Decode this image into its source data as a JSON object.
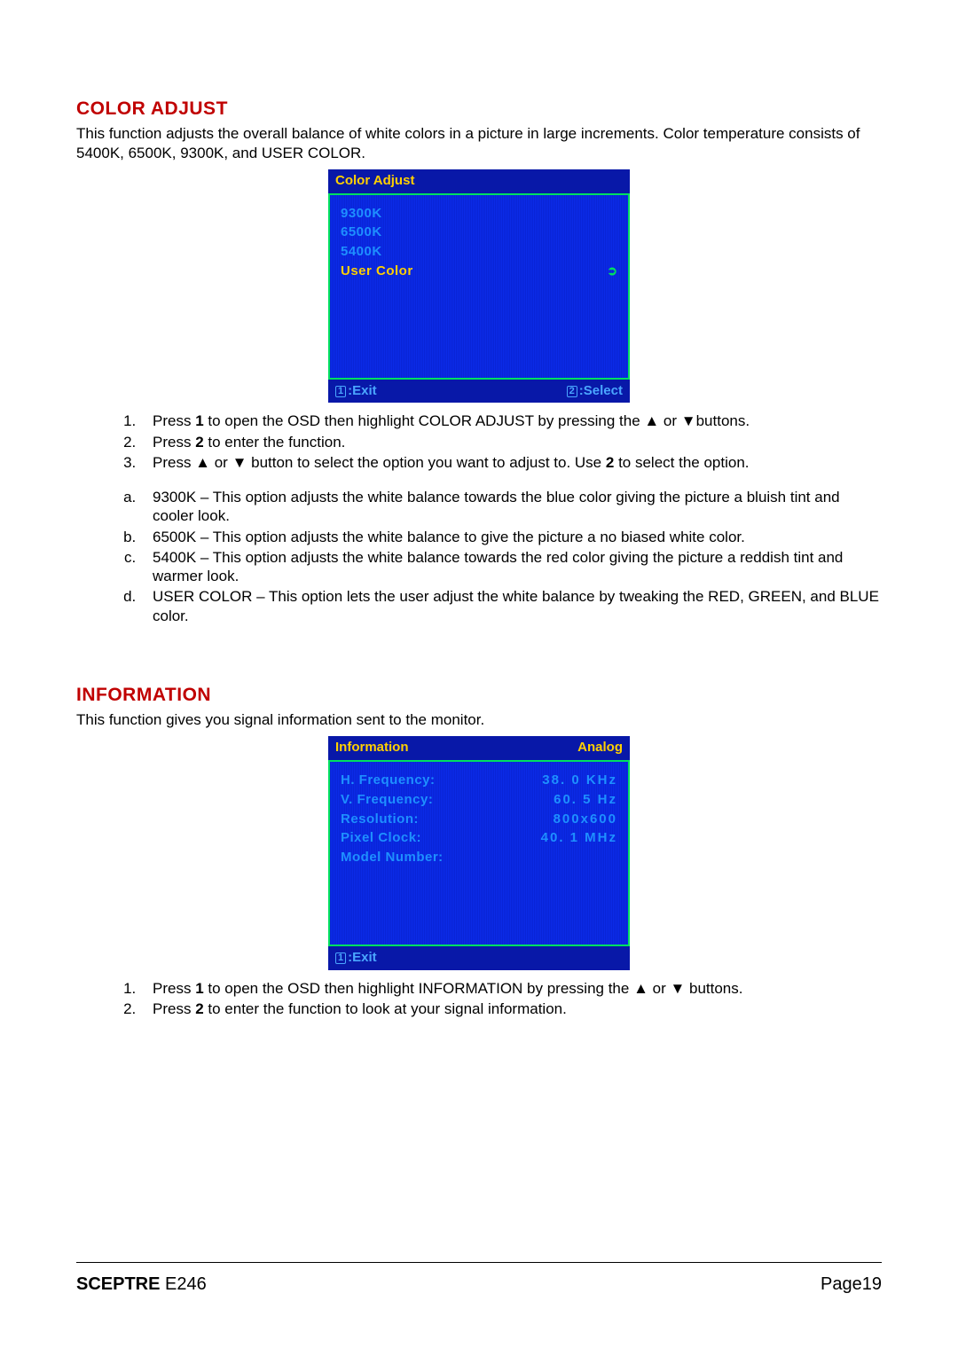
{
  "section1": {
    "heading": "COLOR ADJUST",
    "intro": "This function adjusts the overall balance of white colors in a picture in large increments. Color temperature consists of 5400K, 6500K, 9300K, and USER COLOR.",
    "osd": {
      "title_left": "Color Adjust",
      "title_right": "",
      "bg_color": "#0a2be0",
      "title_bg": "#0818a8",
      "border_color": "#00e060",
      "text_color": "#1e90ff",
      "highlight_color": "#ffd000",
      "rows": [
        {
          "label": "9300K",
          "value": "",
          "selected": false
        },
        {
          "label": "6500K",
          "value": "",
          "selected": false
        },
        {
          "label": "5400K",
          "value": "",
          "selected": false
        },
        {
          "label": "User Color",
          "value": "➲",
          "selected": true
        }
      ],
      "footer_left_key": "1",
      "footer_left_text": ":Exit",
      "footer_right_key": "2",
      "footer_right_text": ":Select"
    },
    "steps": [
      "Press [1] to open the OSD then highlight COLOR ADJUST by pressing the ▲ or ▼buttons.",
      "Press [2] to enter the function.",
      "Press ▲ or ▼ button to select the option you want to adjust to. Use [2] to select the option."
    ],
    "substeps": [
      "9300K – This option adjusts the white balance towards the blue color giving the picture a bluish tint and cooler look.",
      "6500K – This option adjusts the white balance to give the picture a no biased white color.",
      "5400K – This option adjusts the white balance towards the red color giving the picture a reddish tint and warmer look.",
      "USER COLOR – This option lets the user adjust the white balance by tweaking the RED, GREEN, and BLUE color."
    ]
  },
  "section2": {
    "heading": "INFORMATION",
    "intro": "This function gives you signal information sent to the monitor.",
    "osd": {
      "title_left": "Information",
      "title_right": "Analog",
      "bg_color": "#0a2be0",
      "title_bg": "#0818a8",
      "border_color": "#00e060",
      "text_color": "#1e90ff",
      "highlight_color": "#ffd000",
      "rows": [
        {
          "label": "H. Frequency:",
          "value": "38. 0 KHz",
          "selected": false
        },
        {
          "label": "V. Frequency:",
          "value": "60. 5 Hz",
          "selected": false
        },
        {
          "label": "Resolution:",
          "value": "800x600",
          "selected": false
        },
        {
          "label": "Pixel Clock:",
          "value": "40. 1 MHz",
          "selected": false
        },
        {
          "label": "Model Number:",
          "value": "",
          "selected": false
        }
      ],
      "footer_left_key": "1",
      "footer_left_text": ":Exit",
      "footer_right_key": "",
      "footer_right_text": ""
    },
    "steps": [
      "Press [1] to open the OSD then highlight INFORMATION by pressing the ▲ or ▼ buttons.",
      "Press [2] to enter the function to look at your signal information."
    ]
  },
  "footer": {
    "brand_bold": "SCEPTRE",
    "brand_model": " E246",
    "page": "Page19"
  }
}
